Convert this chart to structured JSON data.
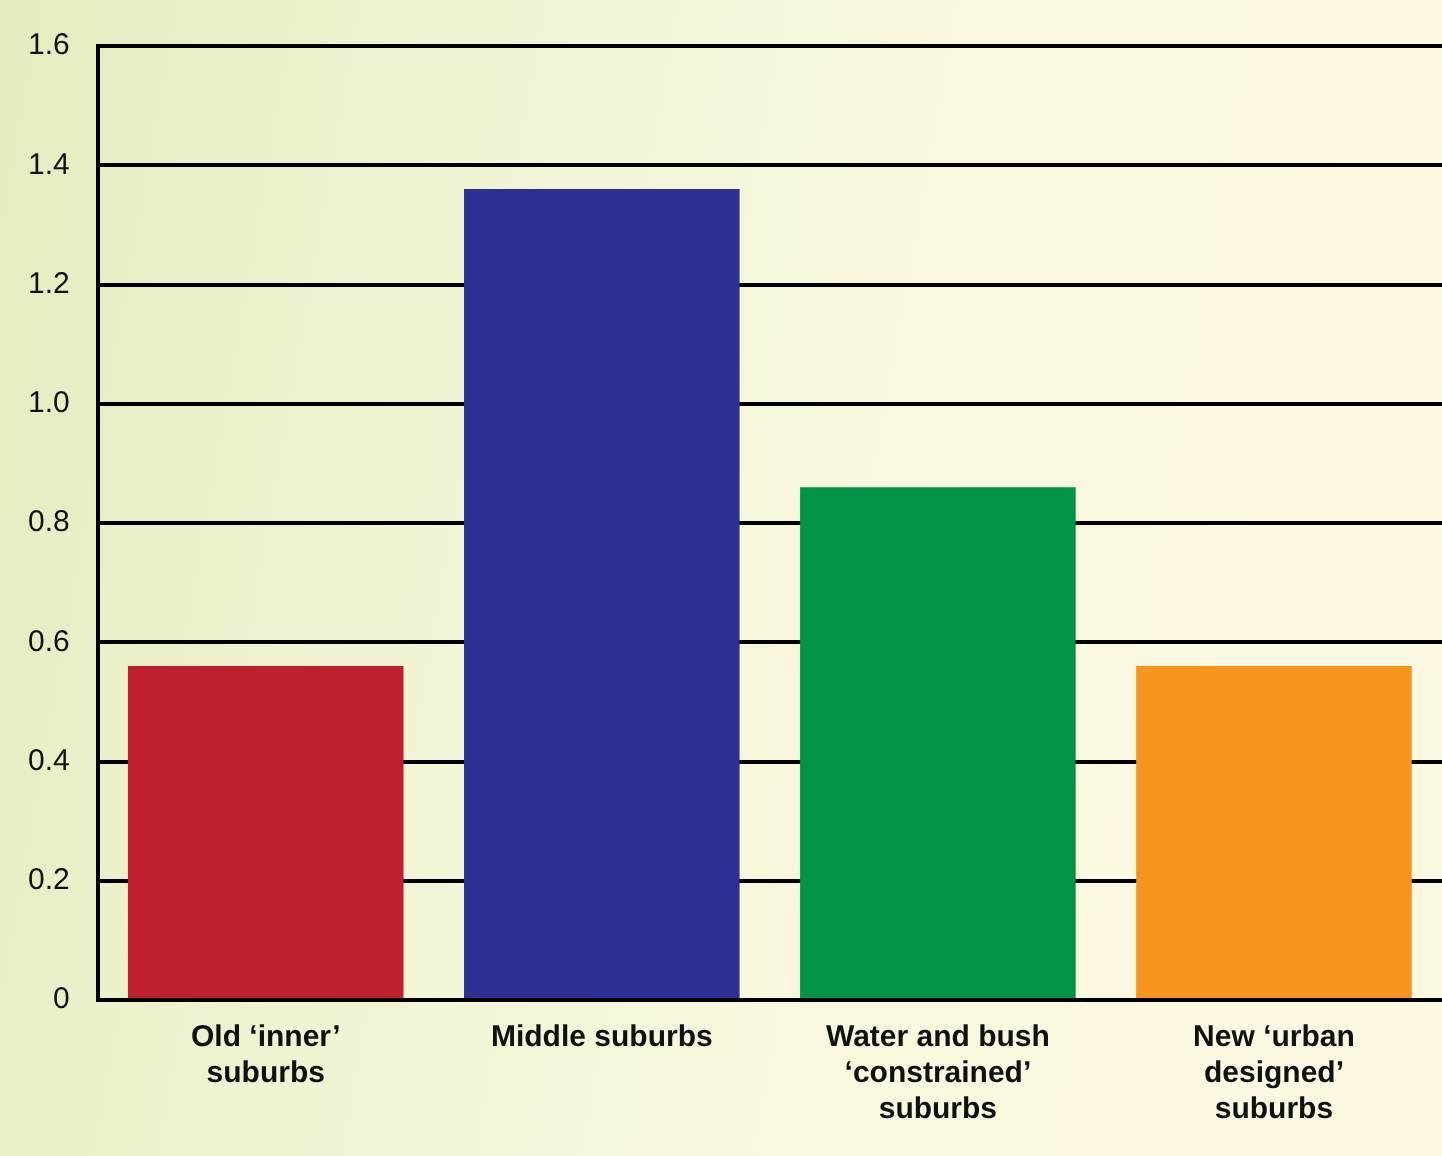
{
  "chart_data": {
    "type": "bar",
    "categories": [
      "Old ‘inner’ suburbs",
      "Middle suburbs",
      "Water and bush ‘constrained’ suburbs",
      "New ‘urban designed’ suburbs"
    ],
    "values": [
      0.56,
      1.36,
      0.86,
      0.56
    ],
    "colors": [
      "#be1e2d",
      "#2e3192",
      "#009444",
      "#f7941d"
    ],
    "ylim": [
      0,
      1.6
    ],
    "yticks": [
      {
        "value": 0,
        "label": "0"
      },
      0.2,
      0.4,
      0.6,
      0.8,
      {
        "value": 1,
        "label": "1.0"
      },
      1.2,
      1.4,
      1.6
    ],
    "grid": "y"
  }
}
